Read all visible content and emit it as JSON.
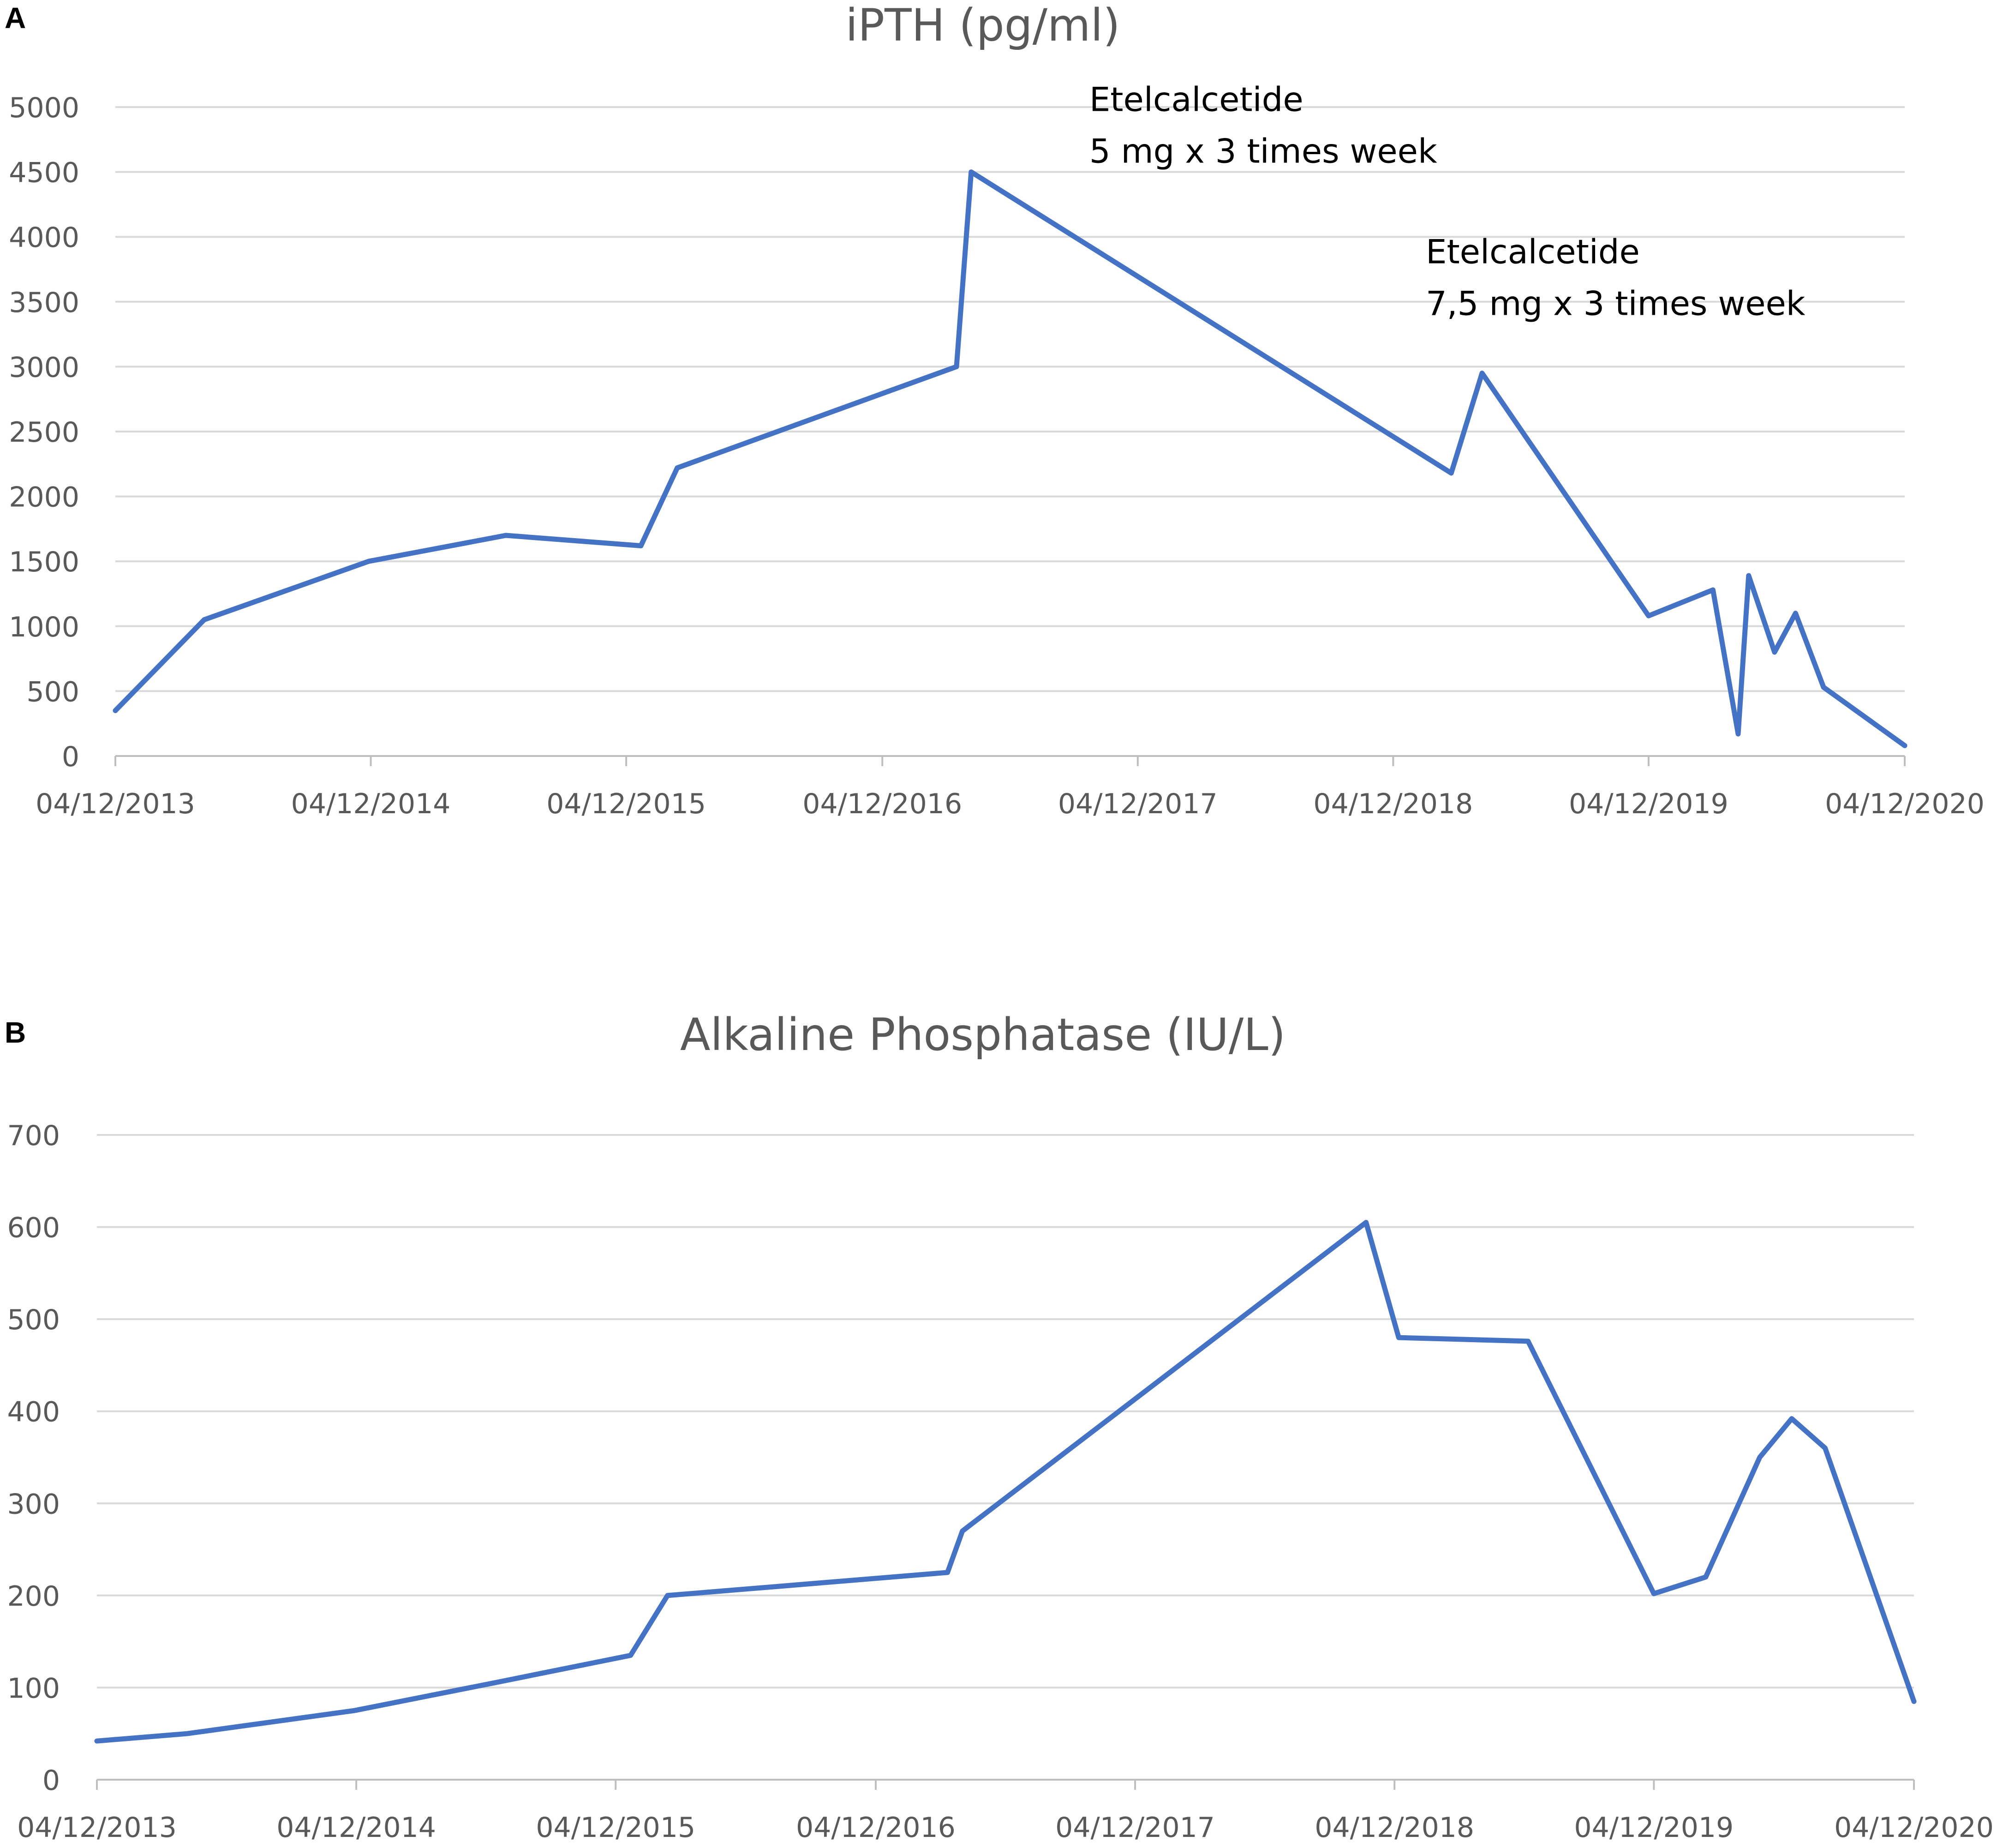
{
  "colors": {
    "line": "#4472c4",
    "grid": "#d9d9d9",
    "text": "#595959"
  },
  "chart_data": [
    {
      "panel_label": "A",
      "type": "line",
      "title": "iPTH (pg/ml)",
      "xlabel": "",
      "ylabel": "",
      "ylim": [
        0,
        5000
      ],
      "yticks": [
        0,
        500,
        1000,
        1500,
        2000,
        2500,
        3000,
        3500,
        4000,
        4500,
        5000
      ],
      "xlim": [
        "2013-12-04",
        "2020-12-04"
      ],
      "x_tick_labels": [
        "04/12/2013",
        "04/12/2014",
        "04/12/2015",
        "04/12/2016",
        "04/12/2017",
        "04/12/2018",
        "04/12/2019",
        "04/12/2020"
      ],
      "grid": true,
      "series": [
        {
          "x": [
            "2013-12-04",
            "2014-04-10",
            "2014-12-01",
            "2015-06-15",
            "2015-12-25",
            "2016-02-15",
            "2017-03-20",
            "2017-04-10",
            "2019-02-25",
            "2019-04-10",
            "2019-12-04",
            "2020-03-05",
            "2020-04-10",
            "2020-04-25",
            "2020-06-01",
            "2020-07-01",
            "2020-08-10",
            "2020-12-04"
          ],
          "values": [
            350,
            1050,
            1500,
            1700,
            1620,
            2220,
            3000,
            4500,
            2180,
            2950,
            1080,
            1280,
            170,
            1390,
            800,
            1100,
            530,
            80
          ]
        }
      ],
      "annotations": [
        {
          "lines": [
            "Etelcalcetide",
            "5 mg x 3 times week"
          ],
          "x": "2017-04-10",
          "y": 4500
        },
        {
          "lines": [
            "Etelcalcetide",
            "7,5 mg x 3 times week"
          ],
          "x": "2019-04-10",
          "y": 2950
        }
      ]
    },
    {
      "panel_label": "B",
      "type": "line",
      "title": "Alkaline Phosphatase (IU/L)",
      "xlabel": "",
      "ylabel": "",
      "ylim": [
        0,
        700
      ],
      "yticks": [
        0,
        100,
        200,
        300,
        400,
        500,
        600,
        700
      ],
      "xlim": [
        "2013-12-04",
        "2020-12-04"
      ],
      "x_tick_labels": [
        "04/12/2013",
        "04/12/2014",
        "04/12/2015",
        "04/12/2016",
        "04/12/2017",
        "04/12/2018",
        "04/12/2019",
        "04/12/2020"
      ],
      "grid": true,
      "series": [
        {
          "x": [
            "2013-12-04",
            "2014-04-10",
            "2014-12-01",
            "2015-06-15",
            "2015-12-25",
            "2016-02-15",
            "2017-03-15",
            "2017-04-05",
            "2018-10-25",
            "2018-12-10",
            "2019-06-10",
            "2019-12-04",
            "2020-02-15",
            "2020-05-01",
            "2020-06-15",
            "2020-08-01",
            "2020-12-04"
          ],
          "values": [
            42,
            50,
            75,
            105,
            135,
            200,
            225,
            270,
            605,
            480,
            476,
            202,
            220,
            350,
            392,
            360,
            85
          ]
        }
      ],
      "annotations": []
    }
  ]
}
